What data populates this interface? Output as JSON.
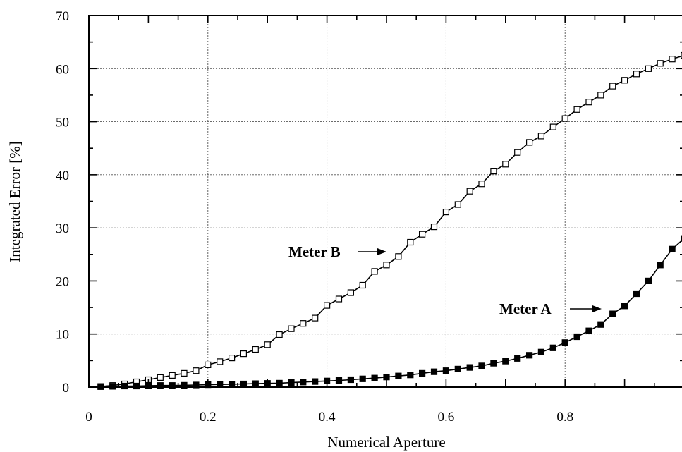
{
  "chart_data": {
    "type": "line",
    "xlabel": "Numerical Aperture",
    "ylabel": "Integrated Error [%]",
    "xlim": [
      0,
      1.0
    ],
    "ylim": [
      0,
      70
    ],
    "x_ticks": [
      0,
      0.2,
      0.4,
      0.6,
      0.8
    ],
    "x_tick_labels": [
      "0",
      "0.2",
      "0.4",
      "0.6",
      "0.8"
    ],
    "y_ticks": [
      0,
      10,
      20,
      30,
      40,
      50,
      60,
      70
    ],
    "y_tick_labels": [
      "0",
      "10",
      "20",
      "30",
      "40",
      "50",
      "60",
      "70"
    ],
    "grid": true,
    "x": [
      0.02,
      0.04,
      0.06,
      0.08,
      0.1,
      0.12,
      0.14,
      0.16,
      0.18,
      0.2,
      0.22,
      0.24,
      0.26,
      0.28,
      0.3,
      0.32,
      0.34,
      0.36,
      0.38,
      0.4,
      0.42,
      0.44,
      0.46,
      0.48,
      0.5,
      0.52,
      0.54,
      0.56,
      0.58,
      0.6,
      0.62,
      0.64,
      0.66,
      0.68,
      0.7,
      0.72,
      0.74,
      0.76,
      0.78,
      0.8,
      0.82,
      0.84,
      0.86,
      0.88,
      0.9,
      0.92,
      0.94,
      0.96,
      0.98,
      1.0
    ],
    "series": [
      {
        "name": "Meter B",
        "marker": "open-square",
        "values": [
          0.1,
          0.3,
          0.6,
          1.0,
          1.4,
          1.8,
          2.2,
          2.6,
          3.1,
          4.2,
          4.8,
          5.5,
          6.3,
          7.1,
          8.0,
          9.9,
          11.0,
          12.0,
          13.0,
          15.4,
          16.6,
          17.8,
          19.2,
          21.8,
          23.0,
          24.6,
          27.3,
          28.8,
          30.2,
          33.0,
          34.4,
          36.9,
          38.3,
          40.7,
          42.0,
          44.2,
          46.1,
          47.3,
          49.0,
          50.6,
          52.3,
          53.7,
          55.0,
          56.7,
          57.8,
          59.0,
          60.0,
          61.0,
          61.8,
          62.5
        ]
      },
      {
        "name": "Meter A",
        "marker": "filled-square",
        "values": [
          0.1,
          0.15,
          0.2,
          0.2,
          0.25,
          0.3,
          0.3,
          0.35,
          0.4,
          0.45,
          0.5,
          0.55,
          0.6,
          0.65,
          0.7,
          0.75,
          0.85,
          0.95,
          1.05,
          1.15,
          1.25,
          1.4,
          1.55,
          1.7,
          1.9,
          2.1,
          2.3,
          2.6,
          2.9,
          3.1,
          3.4,
          3.7,
          4.0,
          4.5,
          4.9,
          5.4,
          6.0,
          6.6,
          7.4,
          8.4,
          9.5,
          10.6,
          11.8,
          13.8,
          15.3,
          17.6,
          20.0,
          23.0,
          26.0,
          28.0
        ]
      }
    ],
    "annotations": [
      {
        "text": "Meter B",
        "series": "Meter B"
      },
      {
        "text": "Meter A",
        "series": "Meter A"
      }
    ]
  }
}
